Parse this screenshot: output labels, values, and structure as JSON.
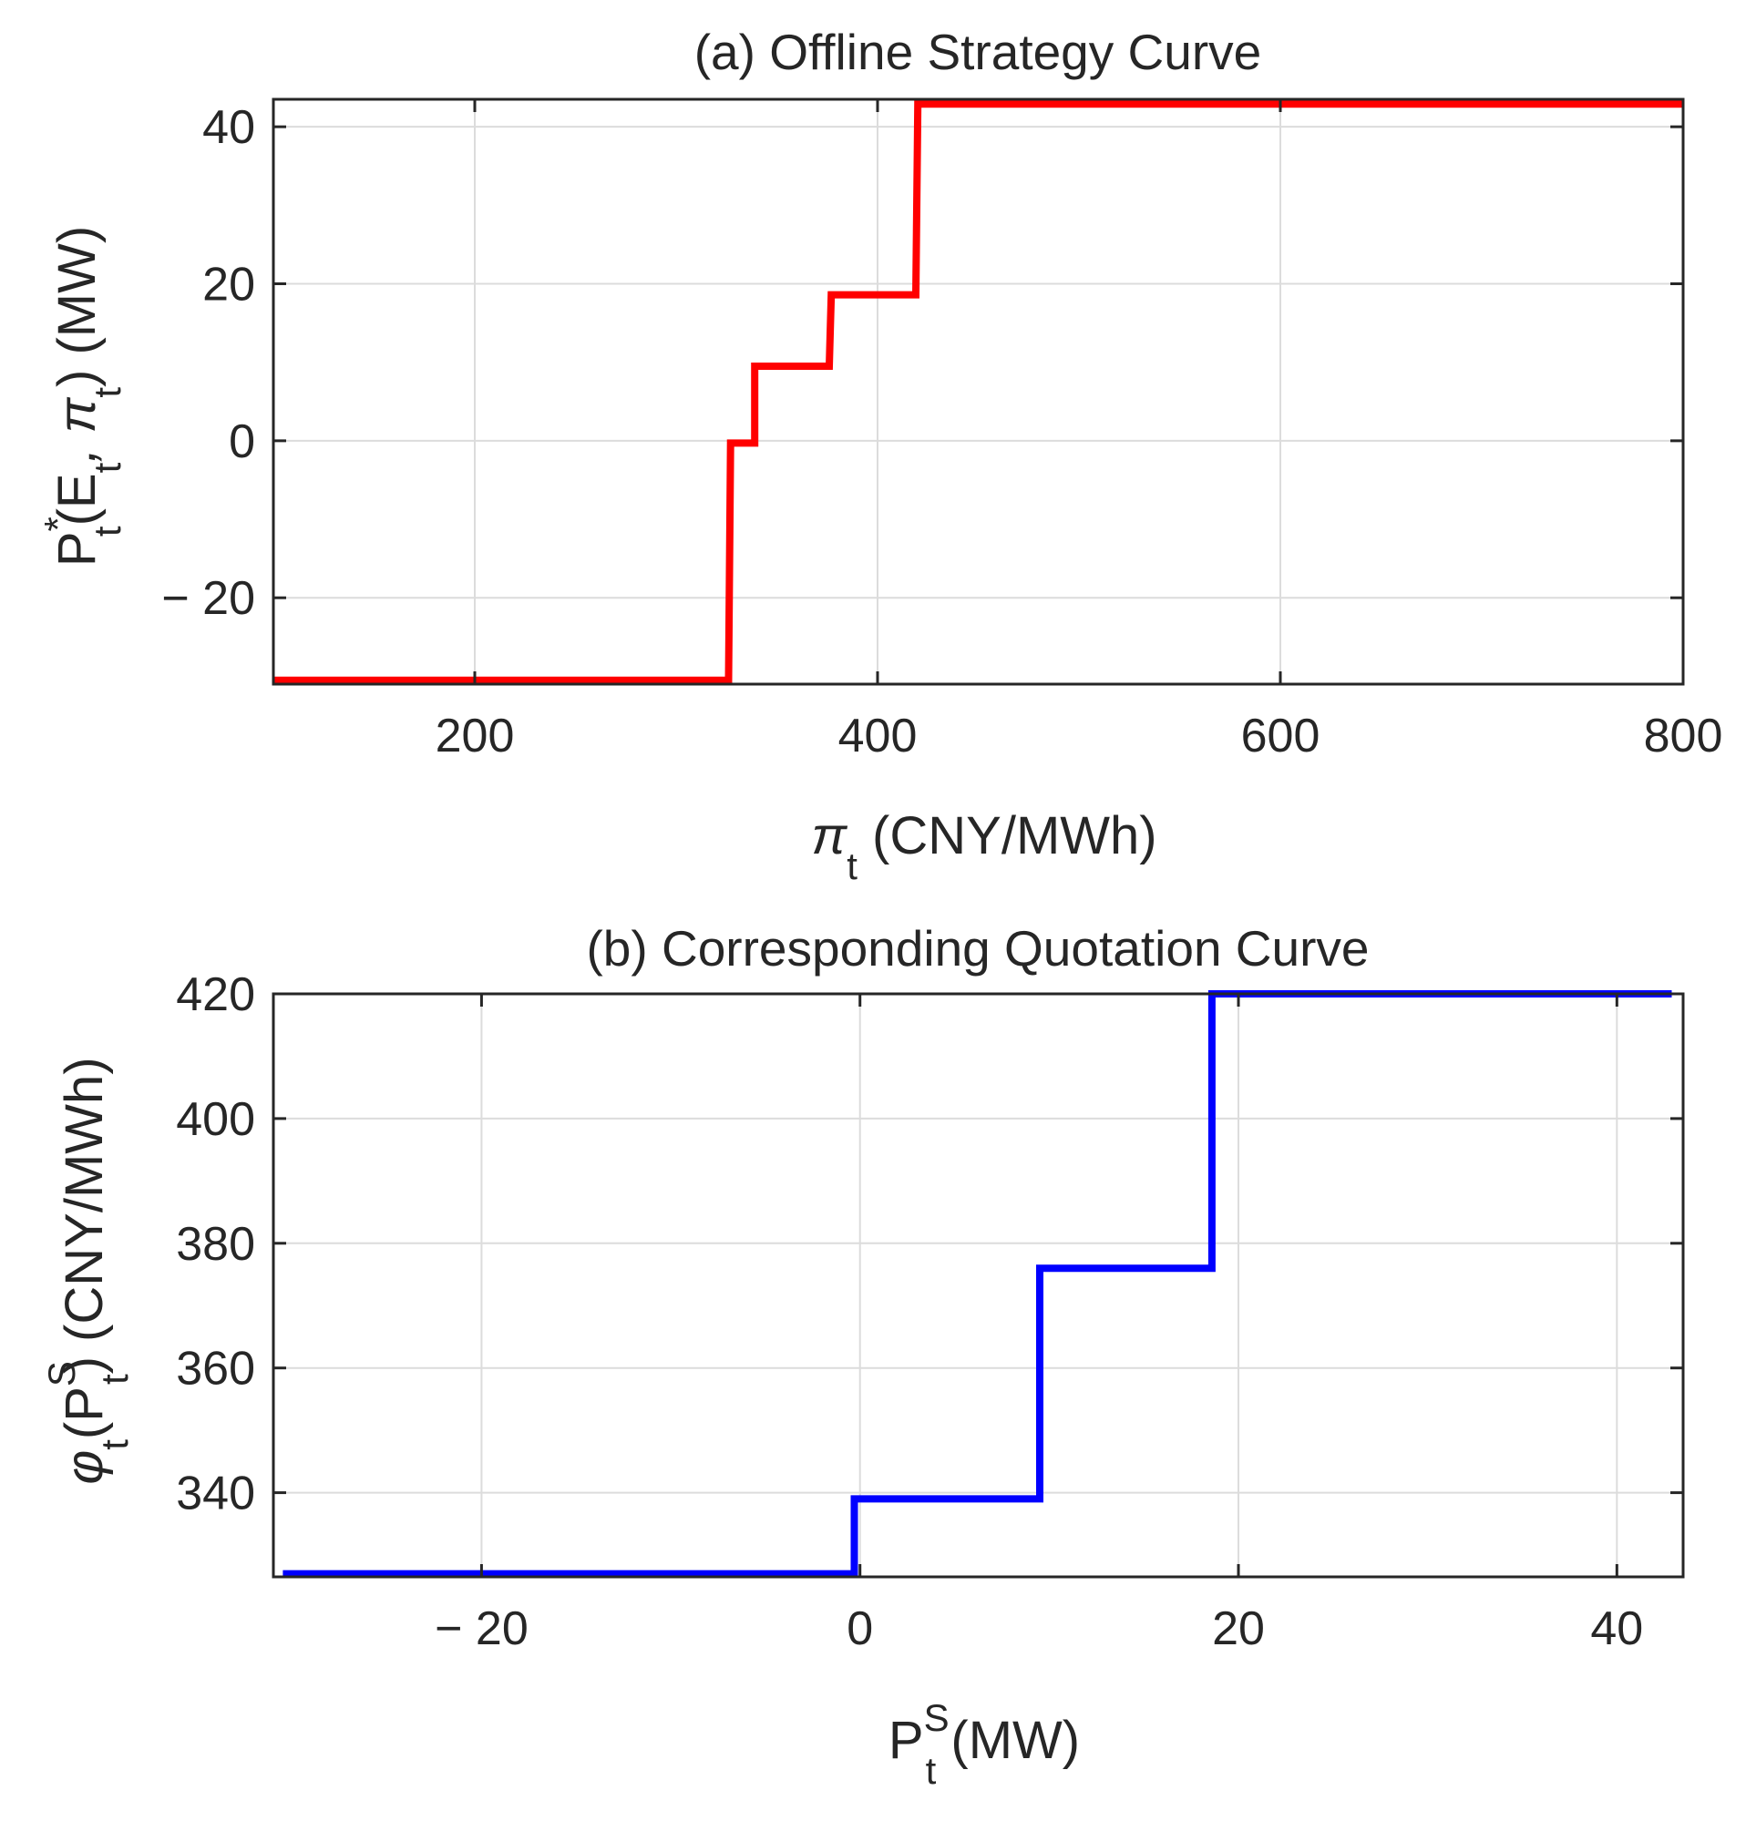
{
  "chart_data": [
    {
      "type": "line",
      "title": "(a) Offline Strategy Curve",
      "xlabel": {
        "main": "π",
        "sub": "t",
        "tail": " (CNY/MWh)"
      },
      "ylabel": {
        "main": "P",
        "sup": "*",
        "sub": "t",
        "arg_open": "(E",
        "arg_sub1": "t",
        "arg_mid": ", π",
        "arg_sub2": "t",
        "tail": ") (MW)"
      },
      "xlim": [
        100,
        800
      ],
      "ylim": [
        -31,
        43.5
      ],
      "xticks": [
        200,
        400,
        600,
        800
      ],
      "yticks": [
        -20,
        0,
        20,
        40
      ],
      "xtick_labels": [
        "200",
        "400",
        "600",
        "800"
      ],
      "ytick_labels": [
        "− 20",
        "0",
        "20",
        "40"
      ],
      "grid": true,
      "color": "#ff0000",
      "series": [
        {
          "name": "strategy",
          "x": [
            100,
            326,
            327,
            339,
            339,
            376,
            377,
            419,
            420,
            800
          ],
          "y": [
            -30.5,
            -30.5,
            -0.3,
            -0.3,
            9.5,
            9.5,
            18.6,
            18.6,
            42.9,
            42.9
          ]
        }
      ]
    },
    {
      "type": "line",
      "title": "(b) Corresponding Quotation Curve",
      "xlabel": {
        "main": "P",
        "sup": "S",
        "sub": "t",
        "tail": " (MW)"
      },
      "ylabel": {
        "pre": "φ",
        "pre_sub": "t",
        "arg_open": "(P",
        "sup": "S",
        "sub": "t",
        "tail": ") (CNY/MWh)"
      },
      "xlim": [
        -31,
        43.5
      ],
      "ylim": [
        326.5,
        420
      ],
      "xticks": [
        -20,
        0,
        20,
        40
      ],
      "yticks": [
        340,
        360,
        380,
        400,
        420
      ],
      "xtick_labels": [
        "− 20",
        "0",
        "20",
        "40"
      ],
      "ytick_labels": [
        "340",
        "360",
        "380",
        "400",
        "420"
      ],
      "grid": true,
      "color": "#0000ff",
      "series": [
        {
          "name": "quotation",
          "x": [
            -30.5,
            -0.3,
            -0.3,
            9.5,
            9.5,
            18.6,
            18.6,
            42.9
          ],
          "y": [
            327,
            327,
            339,
            339,
            376,
            376,
            420,
            420
          ]
        }
      ]
    }
  ]
}
